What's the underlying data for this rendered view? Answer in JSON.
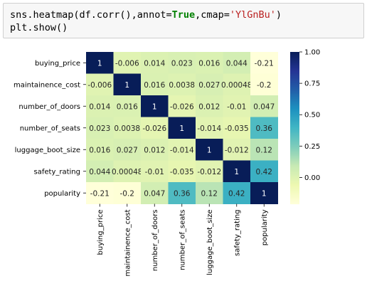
{
  "code": {
    "line1": {
      "prefix": "sns.heatmap(df.corr(),annot=",
      "keyword": "True",
      "middle": ",cmap=",
      "string": "'YlGnBu'",
      "suffix": ")"
    },
    "line2": "plt.show()"
  },
  "colors": {
    "code_background": "#f7f7f7",
    "cmap": "YlGnBu",
    "cmap_stops": [
      "#ffffd9",
      "#edf8b1",
      "#c7e9b4",
      "#7fcdbb",
      "#41b6c4",
      "#1d91c0",
      "#225ea8",
      "#253494",
      "#081d58"
    ]
  },
  "chart_data": {
    "type": "heatmap",
    "title": "",
    "xlabel": "",
    "ylabel": "",
    "categories": [
      "buying_price",
      "maintainence_cost",
      "number_of_doors",
      "number_of_seats",
      "luggage_boot_size",
      "safety_rating",
      "popularity"
    ],
    "values": [
      [
        1,
        -0.006,
        0.014,
        0.023,
        0.016,
        0.044,
        -0.21
      ],
      [
        -0.006,
        1,
        0.016,
        0.0038,
        0.027,
        0.00048,
        -0.2
      ],
      [
        0.014,
        0.016,
        1,
        -0.026,
        0.012,
        -0.01,
        0.047
      ],
      [
        0.023,
        0.0038,
        -0.026,
        1,
        -0.014,
        -0.035,
        0.36
      ],
      [
        0.016,
        0.027,
        0.012,
        -0.014,
        1,
        -0.012,
        0.12
      ],
      [
        0.044,
        0.00048,
        -0.01,
        -0.035,
        -0.012,
        1,
        0.42
      ],
      [
        -0.21,
        -0.2,
        0.047,
        0.36,
        0.12,
        0.42,
        1
      ]
    ],
    "annotations": [
      [
        "1",
        "-0.006",
        "0.014",
        "0.023",
        "0.016",
        "0.044",
        "-0.21"
      ],
      [
        "-0.006",
        "1",
        "0.016",
        "0.0038",
        "0.027",
        "0.00048",
        "-0.2"
      ],
      [
        "0.014",
        "0.016",
        "1",
        "-0.026",
        "0.012",
        "-0.01",
        "0.047"
      ],
      [
        "0.023",
        "0.0038",
        "-0.026",
        "1",
        "-0.014",
        "-0.035",
        "0.36"
      ],
      [
        "0.016",
        "0.027",
        "0.012",
        "-0.014",
        "1",
        "-0.012",
        "0.12"
      ],
      [
        "0.044",
        "0.00048",
        "-0.01",
        "-0.035",
        "-0.012",
        "1",
        "0.42"
      ],
      [
        "-0.21",
        "-0.2",
        "0.047",
        "0.36",
        "0.12",
        "0.42",
        "1"
      ]
    ],
    "colorbar": {
      "vmin": -0.21,
      "vmax": 1.0,
      "ticks": [
        0.0,
        0.25,
        0.5,
        0.75,
        1.0
      ],
      "tick_labels": [
        "0.00",
        "0.25",
        "0.50",
        "0.75",
        "1.00"
      ]
    },
    "grid": false,
    "legend": "colorbar-right"
  }
}
